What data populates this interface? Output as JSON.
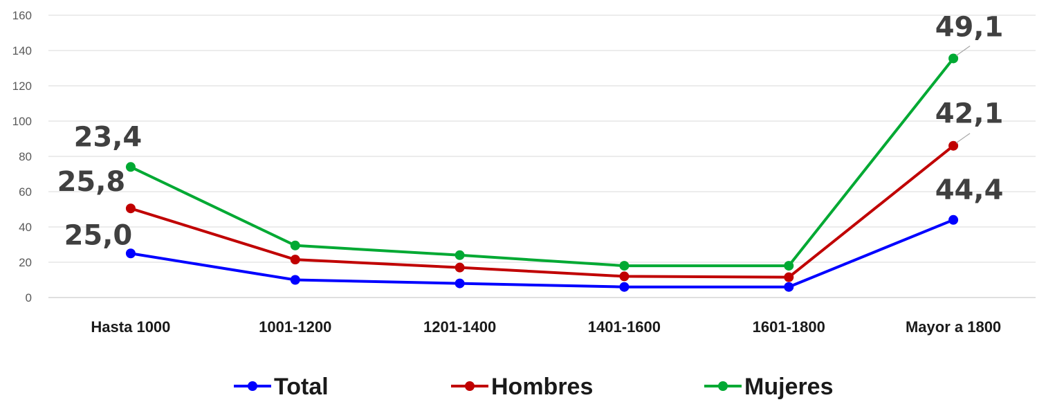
{
  "chart_data": {
    "type": "line",
    "categories": [
      "Hasta 1000",
      "1001-1200",
      "1201-1400",
      "1401-1600",
      "1601-1800",
      "Mayor a 1800"
    ],
    "ylim": [
      0,
      160
    ],
    "yticks": [
      0,
      20,
      40,
      60,
      80,
      100,
      120,
      140,
      160
    ],
    "grid": true,
    "legend_position": "bottom",
    "series": [
      {
        "name": "Total",
        "color": "#0000ff",
        "values": [
          25,
          10,
          8,
          6,
          6,
          44
        ]
      },
      {
        "name": "Hombres",
        "color": "#c00000",
        "values": [
          50.5,
          21.5,
          17,
          12,
          11.5,
          86
        ]
      },
      {
        "name": "Mujeres",
        "color": "#00a933",
        "values": [
          74,
          29.5,
          24,
          18,
          18,
          135.5
        ]
      }
    ],
    "data_labels": [
      {
        "series": "Mujeres",
        "category": "Hasta 1000",
        "text": "23,4"
      },
      {
        "series": "Hombres",
        "category": "Hasta 1000",
        "text": "25,8"
      },
      {
        "series": "Total",
        "category": "Hasta 1000",
        "text": "25,0"
      },
      {
        "series": "Mujeres",
        "category": "Mayor a 1800",
        "text": "49,1"
      },
      {
        "series": "Hombres",
        "category": "Mayor a 1800",
        "text": "42,1"
      },
      {
        "series": "Total",
        "category": "Mayor a 1800",
        "text": "44,4"
      }
    ]
  }
}
